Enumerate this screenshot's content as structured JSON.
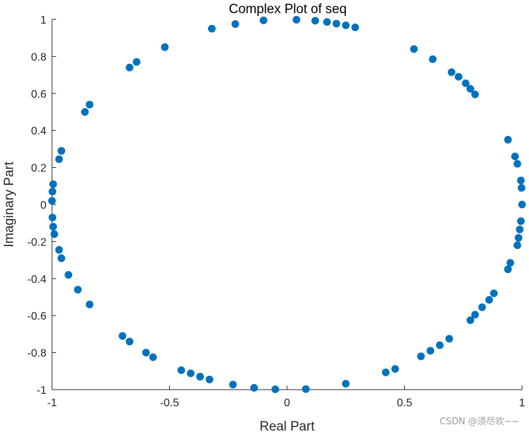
{
  "chart_data": {
    "type": "scatter",
    "title": "Complex Plot of seq",
    "xlabel": "Real Part",
    "ylabel": "Imaginary Part",
    "xlim": [
      -1,
      1
    ],
    "ylim": [
      -1,
      1
    ],
    "xticks": [
      -1,
      -0.5,
      0,
      0.5,
      1
    ],
    "xtick_labels": [
      "-1",
      "-0.5",
      "0",
      "0.5",
      "1"
    ],
    "yticks": [
      -1,
      -0.8,
      -0.6,
      -0.4,
      -0.2,
      0,
      0.2,
      0.4,
      0.6,
      0.8,
      1
    ],
    "ytick_labels": [
      "-1",
      "-0.8",
      "-0.6",
      "-0.4",
      "-0.2",
      "0",
      "0.2",
      "0.4",
      "0.6",
      "0.8",
      "1"
    ],
    "grid": false,
    "marker_color": "#0072BD",
    "points": [
      {
        "x": -0.32,
        "y": 0.95
      },
      {
        "x": -0.22,
        "y": 0.975
      },
      {
        "x": -0.1,
        "y": 0.995
      },
      {
        "x": 0.04,
        "y": 0.998
      },
      {
        "x": 0.12,
        "y": 0.993
      },
      {
        "x": 0.17,
        "y": 0.986
      },
      {
        "x": 0.21,
        "y": 0.977
      },
      {
        "x": 0.25,
        "y": 0.968
      },
      {
        "x": 0.29,
        "y": 0.957
      },
      {
        "x": -0.52,
        "y": 0.85
      },
      {
        "x": -0.64,
        "y": 0.77
      },
      {
        "x": -0.67,
        "y": 0.74
      },
      {
        "x": -0.84,
        "y": 0.54
      },
      {
        "x": -0.86,
        "y": 0.5
      },
      {
        "x": -0.96,
        "y": 0.29
      },
      {
        "x": -0.97,
        "y": 0.245
      },
      {
        "x": -0.995,
        "y": 0.11
      },
      {
        "x": -0.998,
        "y": 0.07
      },
      {
        "x": -1.0,
        "y": 0.02
      },
      {
        "x": -0.998,
        "y": -0.07
      },
      {
        "x": -0.995,
        "y": -0.12
      },
      {
        "x": -0.99,
        "y": -0.16
      },
      {
        "x": -0.97,
        "y": -0.245
      },
      {
        "x": -0.96,
        "y": -0.29
      },
      {
        "x": -0.93,
        "y": -0.38
      },
      {
        "x": -0.89,
        "y": -0.46
      },
      {
        "x": -0.84,
        "y": -0.54
      },
      {
        "x": -0.7,
        "y": -0.71
      },
      {
        "x": -0.67,
        "y": -0.74
      },
      {
        "x": -0.6,
        "y": -0.8
      },
      {
        "x": -0.57,
        "y": -0.825
      },
      {
        "x": -0.45,
        "y": -0.895
      },
      {
        "x": -0.41,
        "y": -0.912
      },
      {
        "x": -0.37,
        "y": -0.93
      },
      {
        "x": -0.33,
        "y": -0.945
      },
      {
        "x": -0.23,
        "y": -0.973
      },
      {
        "x": -0.14,
        "y": -0.99
      },
      {
        "x": -0.05,
        "y": -0.998
      },
      {
        "x": 0.08,
        "y": -0.997
      },
      {
        "x": 0.25,
        "y": -0.968
      },
      {
        "x": 0.42,
        "y": -0.907
      },
      {
        "x": 0.46,
        "y": -0.888
      },
      {
        "x": 0.57,
        "y": -0.82
      },
      {
        "x": 0.61,
        "y": -0.79
      },
      {
        "x": 0.65,
        "y": -0.76
      },
      {
        "x": 0.69,
        "y": -0.725
      },
      {
        "x": 0.78,
        "y": -0.625
      },
      {
        "x": 0.8,
        "y": -0.595
      },
      {
        "x": 0.83,
        "y": -0.555
      },
      {
        "x": 0.86,
        "y": -0.515
      },
      {
        "x": 0.88,
        "y": -0.48
      },
      {
        "x": 0.94,
        "y": -0.35
      },
      {
        "x": 0.95,
        "y": -0.315
      },
      {
        "x": 0.98,
        "y": -0.22
      },
      {
        "x": 0.985,
        "y": -0.18
      },
      {
        "x": 0.99,
        "y": -0.135
      },
      {
        "x": 0.995,
        "y": -0.09
      },
      {
        "x": 1.0,
        "y": 0.0
      },
      {
        "x": 0.998,
        "y": 0.09
      },
      {
        "x": 0.995,
        "y": 0.13
      },
      {
        "x": 0.98,
        "y": 0.22
      },
      {
        "x": 0.97,
        "y": 0.26
      },
      {
        "x": 0.94,
        "y": 0.35
      },
      {
        "x": 0.8,
        "y": 0.595
      },
      {
        "x": 0.78,
        "y": 0.625
      },
      {
        "x": 0.76,
        "y": 0.655
      },
      {
        "x": 0.73,
        "y": 0.69
      },
      {
        "x": 0.7,
        "y": 0.715
      },
      {
        "x": 0.62,
        "y": 0.785
      },
      {
        "x": 0.54,
        "y": 0.84
      }
    ]
  },
  "watermark": "CSDN @须尽欢~~"
}
